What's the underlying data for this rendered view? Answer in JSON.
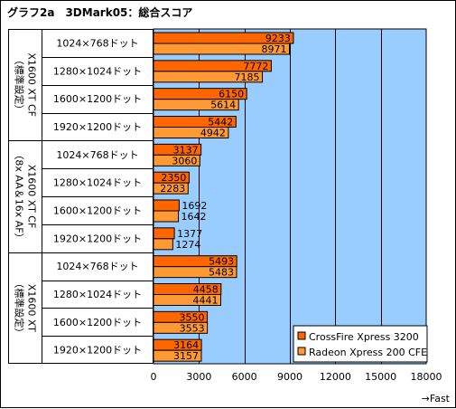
{
  "chart_data": {
    "type": "bar",
    "orientation": "horizontal",
    "title": "グラフ2a　3DMark05：総合スコア",
    "xlabel": "→Fast",
    "xlim": [
      0,
      18000
    ],
    "xticks": [
      0,
      3000,
      6000,
      9000,
      12000,
      15000,
      18000
    ],
    "grid": true,
    "legend_position": "bottom-right",
    "groups": [
      {
        "label": "X1600 XT CF\n（標準設定）"
      },
      {
        "label": "X1600 XT CF\n（8x AA＆16x AF）"
      },
      {
        "label": "X1600 XT\n（標準設定）"
      }
    ],
    "categories": [
      "1024×768ドット",
      "1280×1024ドット",
      "1600×1200ドット",
      "1920×1200ドット",
      "1024×768ドット",
      "1280×1024ドット",
      "1600×1200ドット",
      "1920×1200ドット",
      "1024×768ドット",
      "1280×1024ドット",
      "1600×1200ドット",
      "1920×1200ドット"
    ],
    "series": [
      {
        "name": "CrossFire Xpress 3200",
        "color": "#ff6600",
        "values": [
          9233,
          7772,
          6150,
          5442,
          3137,
          2350,
          1692,
          1377,
          5493,
          4458,
          3550,
          3164
        ]
      },
      {
        "name": "Radeon Xpress 200 CFE",
        "color": "#ff9933",
        "values": [
          8971,
          7185,
          5614,
          4942,
          3060,
          2283,
          1642,
          1274,
          5483,
          4441,
          3553,
          3157
        ]
      }
    ],
    "colors": {
      "plot_bg": "#99ccff",
      "grid": "#000000"
    }
  }
}
